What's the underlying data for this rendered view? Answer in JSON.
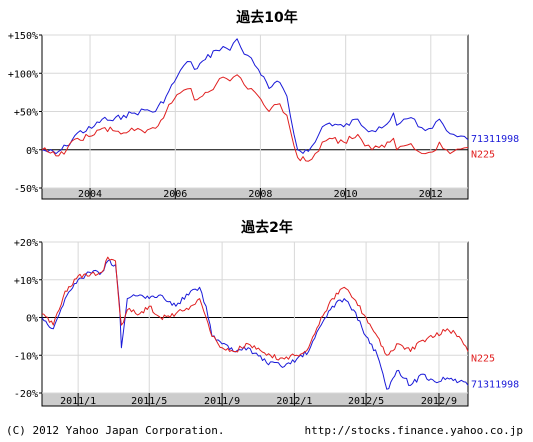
{
  "footer": {
    "copyright": "(C) 2012 Yahoo Japan Corporation.",
    "url": "http://stocks.finance.yahoo.co.jp"
  },
  "colors": {
    "fund": "#1a1ad8",
    "index": "#e02020",
    "grid": "#d8d8d8",
    "axis_band": "#cccccc"
  },
  "chart_data": [
    {
      "type": "line",
      "title": "過去10年",
      "x_ticks": [
        "2004",
        "2006",
        "2008",
        "2010",
        "2012"
      ],
      "y_ticks": [
        "+150%",
        "+100%",
        "+50%",
        "0%",
        "-50%"
      ],
      "ylim": [
        -50,
        150
      ],
      "xlim": [
        "2002-11",
        "2012-11"
      ],
      "series": [
        {
          "name": "71311998",
          "color": "#1a1ad8",
          "points": [
            [
              "2002-11",
              0
            ],
            [
              "2003-03",
              -5
            ],
            [
              "2003-06",
              5
            ],
            [
              "2003-09",
              22
            ],
            [
              "2004-01",
              28
            ],
            [
              "2004-04",
              40
            ],
            [
              "2004-07",
              38
            ],
            [
              "2004-10",
              45
            ],
            [
              "2005-01",
              48
            ],
            [
              "2005-04",
              52
            ],
            [
              "2005-07",
              50
            ],
            [
              "2005-10",
              70
            ],
            [
              "2006-01",
              95
            ],
            [
              "2006-03",
              110
            ],
            [
              "2006-05",
              115
            ],
            [
              "2006-06",
              105
            ],
            [
              "2006-09",
              118
            ],
            [
              "2006-12",
              130
            ],
            [
              "2007-02",
              135
            ],
            [
              "2007-04",
              130
            ],
            [
              "2007-06",
              145
            ],
            [
              "2007-08",
              125
            ],
            [
              "2007-10",
              120
            ],
            [
              "2007-12",
              105
            ],
            [
              "2008-03",
              80
            ],
            [
              "2008-06",
              88
            ],
            [
              "2008-08",
              70
            ],
            [
              "2008-10",
              20
            ],
            [
              "2008-11",
              0
            ],
            [
              "2009-02",
              -2
            ],
            [
              "2009-04",
              10
            ],
            [
              "2009-06",
              30
            ],
            [
              "2009-08",
              35
            ],
            [
              "2009-12",
              30
            ],
            [
              "2010-04",
              40
            ],
            [
              "2010-06",
              28
            ],
            [
              "2010-08",
              25
            ],
            [
              "2010-10",
              30
            ],
            [
              "2011-01",
              38
            ],
            [
              "2011-02",
              48
            ],
            [
              "2011-03",
              32
            ],
            [
              "2011-05",
              40
            ],
            [
              "2011-07",
              42
            ],
            [
              "2011-09",
              30
            ],
            [
              "2011-11",
              25
            ],
            [
              "2012-01",
              28
            ],
            [
              "2012-03",
              40
            ],
            [
              "2012-05",
              25
            ],
            [
              "2012-07",
              20
            ],
            [
              "2012-09",
              18
            ],
            [
              "2012-11",
              13
            ]
          ]
        },
        {
          "name": "N225",
          "color": "#e02020",
          "points": [
            [
              "2002-11",
              0
            ],
            [
              "2003-03",
              -8
            ],
            [
              "2003-06",
              0
            ],
            [
              "2003-09",
              15
            ],
            [
              "2004-01",
              18
            ],
            [
              "2004-04",
              28
            ],
            [
              "2004-07",
              25
            ],
            [
              "2004-10",
              22
            ],
            [
              "2005-01",
              25
            ],
            [
              "2005-04",
              22
            ],
            [
              "2005-07",
              28
            ],
            [
              "2005-10",
              50
            ],
            [
              "2006-01",
              72
            ],
            [
              "2006-03",
              78
            ],
            [
              "2006-05",
              80
            ],
            [
              "2006-06",
              65
            ],
            [
              "2006-09",
              75
            ],
            [
              "2006-12",
              85
            ],
            [
              "2007-02",
              95
            ],
            [
              "2007-04",
              90
            ],
            [
              "2007-06",
              98
            ],
            [
              "2007-08",
              85
            ],
            [
              "2007-10",
              80
            ],
            [
              "2007-12",
              70
            ],
            [
              "2008-03",
              50
            ],
            [
              "2008-06",
              60
            ],
            [
              "2008-08",
              45
            ],
            [
              "2008-10",
              5
            ],
            [
              "2008-11",
              -10
            ],
            [
              "2009-02",
              -15
            ],
            [
              "2009-04",
              -5
            ],
            [
              "2009-06",
              10
            ],
            [
              "2009-08",
              15
            ],
            [
              "2009-12",
              10
            ],
            [
              "2010-04",
              20
            ],
            [
              "2010-06",
              5
            ],
            [
              "2010-08",
              0
            ],
            [
              "2010-10",
              3
            ],
            [
              "2011-01",
              10
            ],
            [
              "2011-02",
              15
            ],
            [
              "2011-03",
              0
            ],
            [
              "2011-05",
              5
            ],
            [
              "2011-07",
              8
            ],
            [
              "2011-09",
              -2
            ],
            [
              "2011-11",
              -5
            ],
            [
              "2012-01",
              -3
            ],
            [
              "2012-03",
              10
            ],
            [
              "2012-05",
              0
            ],
            [
              "2012-07",
              -2
            ],
            [
              "2012-09",
              1
            ],
            [
              "2012-11",
              3
            ]
          ]
        }
      ]
    },
    {
      "type": "line",
      "title": "過去2年",
      "x_ticks": [
        "2011/1",
        "2011/5",
        "2011/9",
        "2012/1",
        "2012/5",
        "2012/9"
      ],
      "y_ticks": [
        "+20%",
        "+10%",
        "0%",
        "-10%",
        "-20%"
      ],
      "ylim": [
        -20,
        20
      ],
      "xlim": [
        "2010-11-01",
        "2012-10-20"
      ],
      "series": [
        {
          "name": "71311998",
          "color": "#1a1ad8",
          "points": [
            [
              "2010-11-01",
              0
            ],
            [
              "2010-11-20",
              -3
            ],
            [
              "2010-12-10",
              5
            ],
            [
              "2011-01-01",
              10
            ],
            [
              "2011-01-20",
              12
            ],
            [
              "2011-02-10",
              12
            ],
            [
              "2011-02-20",
              15
            ],
            [
              "2011-03-05",
              14
            ],
            [
              "2011-03-12",
              3
            ],
            [
              "2011-03-15",
              -8
            ],
            [
              "2011-03-25",
              5
            ],
            [
              "2011-04-15",
              6
            ],
            [
              "2011-05-01",
              5
            ],
            [
              "2011-05-20",
              6
            ],
            [
              "2011-06-15",
              3
            ],
            [
              "2011-07-10",
              7
            ],
            [
              "2011-07-25",
              8
            ],
            [
              "2011-08-05",
              3
            ],
            [
              "2011-08-15",
              -5
            ],
            [
              "2011-09-01",
              -7
            ],
            [
              "2011-09-20",
              -9
            ],
            [
              "2011-10-15",
              -8
            ],
            [
              "2011-11-15",
              -12
            ],
            [
              "2011-12-15",
              -13
            ],
            [
              "2012-01-05",
              -11
            ],
            [
              "2012-01-25",
              -9
            ],
            [
              "2012-02-15",
              -2
            ],
            [
              "2012-03-05",
              3
            ],
            [
              "2012-03-25",
              5
            ],
            [
              "2012-04-10",
              2
            ],
            [
              "2012-05-01",
              -5
            ],
            [
              "2012-05-20",
              -10
            ],
            [
              "2012-06-05",
              -19
            ],
            [
              "2012-06-25",
              -14
            ],
            [
              "2012-07-15",
              -18
            ],
            [
              "2012-08-05",
              -15
            ],
            [
              "2012-08-25",
              -17
            ],
            [
              "2012-09-15",
              -16
            ],
            [
              "2012-10-05",
              -17
            ],
            [
              "2012-10-20",
              -18
            ]
          ]
        },
        {
          "name": "N225",
          "color": "#e02020",
          "points": [
            [
              "2010-11-01",
              1
            ],
            [
              "2010-11-20",
              -2
            ],
            [
              "2010-12-10",
              7
            ],
            [
              "2011-01-01",
              11
            ],
            [
              "2011-01-20",
              11
            ],
            [
              "2011-02-10",
              12
            ],
            [
              "2011-02-20",
              16
            ],
            [
              "2011-03-05",
              15
            ],
            [
              "2011-03-12",
              2
            ],
            [
              "2011-03-15",
              -2
            ],
            [
              "2011-03-25",
              2
            ],
            [
              "2011-04-15",
              1
            ],
            [
              "2011-05-01",
              3
            ],
            [
              "2011-05-20",
              0
            ],
            [
              "2011-06-15",
              1
            ],
            [
              "2011-07-10",
              3
            ],
            [
              "2011-07-25",
              5
            ],
            [
              "2011-08-05",
              0
            ],
            [
              "2011-08-15",
              -5
            ],
            [
              "2011-09-01",
              -8
            ],
            [
              "2011-09-20",
              -9
            ],
            [
              "2011-10-15",
              -7
            ],
            [
              "2011-11-15",
              -10
            ],
            [
              "2011-12-15",
              -11
            ],
            [
              "2012-01-05",
              -10
            ],
            [
              "2012-01-25",
              -8
            ],
            [
              "2012-02-15",
              0
            ],
            [
              "2012-03-05",
              5
            ],
            [
              "2012-03-25",
              8
            ],
            [
              "2012-04-10",
              5
            ],
            [
              "2012-05-01",
              0
            ],
            [
              "2012-05-20",
              -5
            ],
            [
              "2012-06-05",
              -10
            ],
            [
              "2012-06-25",
              -7
            ],
            [
              "2012-07-15",
              -9
            ],
            [
              "2012-08-05",
              -6
            ],
            [
              "2012-08-25",
              -5
            ],
            [
              "2012-09-15",
              -3
            ],
            [
              "2012-10-05",
              -5
            ],
            [
              "2012-10-20",
              -9
            ]
          ]
        }
      ]
    }
  ]
}
